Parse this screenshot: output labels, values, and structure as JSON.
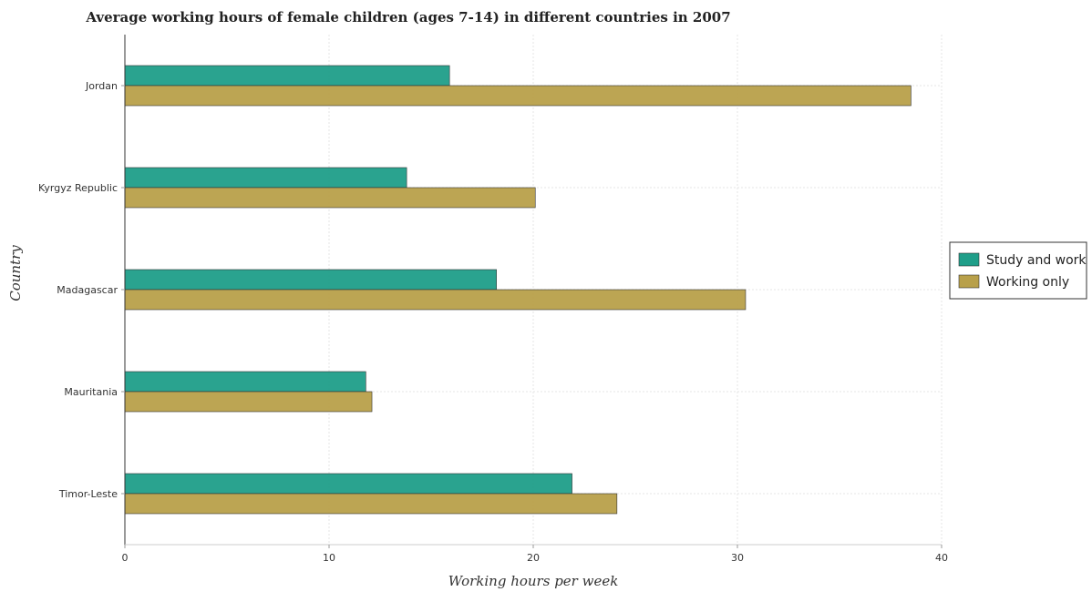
{
  "chart_data": {
    "type": "bar",
    "orientation": "horizontal",
    "title": "Average working hours of female children (ages 7-14) in different countries in 2007",
    "xlabel": "Working hours per week",
    "ylabel": "Country",
    "categories": [
      "Jordan",
      "Kyrgyz Republic",
      "Madagascar",
      "Mauritania",
      "Timor-Leste"
    ],
    "series": [
      {
        "name": "Study and work",
        "values": [
          15.9,
          13.8,
          18.2,
          11.8,
          21.9
        ],
        "color": "#1f9e89"
      },
      {
        "name": "Working only",
        "values": [
          38.5,
          20.1,
          30.4,
          12.1,
          24.1
        ],
        "color": "#b8a04a"
      }
    ],
    "xlim": [
      0,
      40
    ],
    "xticks": [
      "0",
      "10",
      "20",
      "30",
      "40"
    ],
    "grid": true,
    "legend_position": "right"
  }
}
